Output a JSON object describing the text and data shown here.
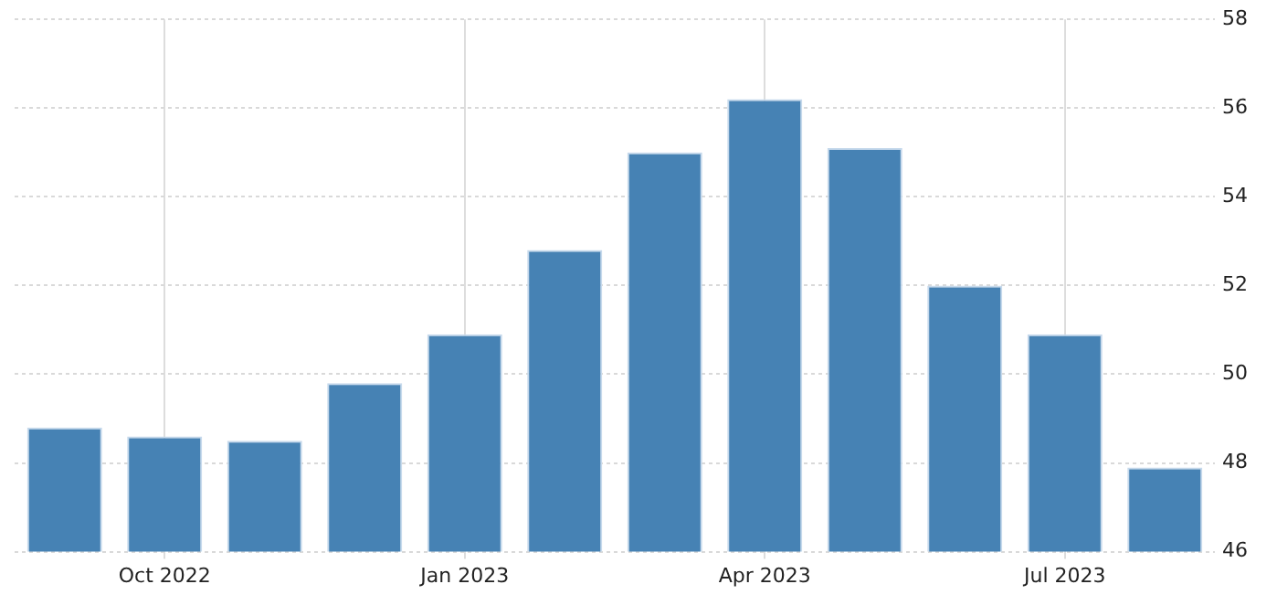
{
  "chart_data": {
    "type": "bar",
    "categories": [
      null,
      "Oct 2022",
      null,
      null,
      "Jan 2023",
      null,
      null,
      "Apr 2023",
      null,
      null,
      "Jul 2023",
      null
    ],
    "values": [
      48.8,
      48.6,
      48.5,
      49.8,
      50.9,
      52.8,
      55.0,
      56.2,
      55.1,
      52.0,
      50.9,
      47.9
    ],
    "color": "#4682b4",
    "ylim": [
      46,
      58
    ],
    "yticks": [
      46,
      48,
      50,
      52,
      54,
      56,
      58
    ],
    "grid": true
  }
}
